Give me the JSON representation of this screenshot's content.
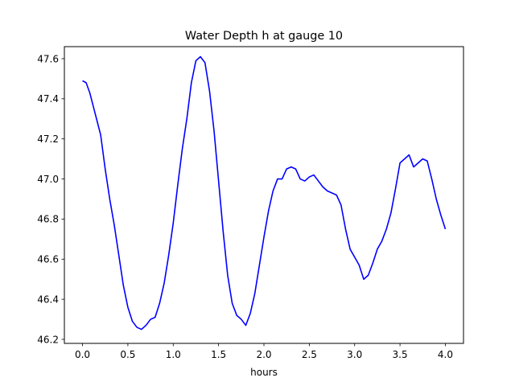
{
  "chart_data": {
    "type": "line",
    "title": "Water Depth h at gauge 10",
    "xlabel": "hours",
    "ylabel": "",
    "xlim": [
      -0.2,
      4.2
    ],
    "ylim": [
      46.18,
      47.66
    ],
    "xticks": [
      0.0,
      0.5,
      1.0,
      1.5,
      2.0,
      2.5,
      3.0,
      3.5,
      4.0
    ],
    "xtick_labels": [
      "0.0",
      "0.5",
      "1.0",
      "1.5",
      "2.0",
      "2.5",
      "3.0",
      "3.5",
      "4.0"
    ],
    "yticks": [
      46.2,
      46.4,
      46.6,
      46.8,
      47.0,
      47.2,
      47.4,
      47.6
    ],
    "ytick_labels": [
      "46.2",
      "46.4",
      "46.6",
      "46.8",
      "47.0",
      "47.2",
      "47.4",
      "47.6"
    ],
    "grid": false,
    "series": [
      {
        "color": "#0000ff",
        "x": [
          0.0,
          0.04,
          0.08,
          0.12,
          0.16,
          0.2,
          0.25,
          0.3,
          0.35,
          0.4,
          0.45,
          0.5,
          0.55,
          0.6,
          0.65,
          0.7,
          0.75,
          0.8,
          0.85,
          0.9,
          0.95,
          1.0,
          1.05,
          1.1,
          1.15,
          1.2,
          1.25,
          1.3,
          1.35,
          1.4,
          1.45,
          1.5,
          1.55,
          1.6,
          1.65,
          1.7,
          1.75,
          1.8,
          1.85,
          1.9,
          1.95,
          2.0,
          2.05,
          2.1,
          2.15,
          2.2,
          2.25,
          2.3,
          2.35,
          2.4,
          2.45,
          2.5,
          2.55,
          2.6,
          2.65,
          2.7,
          2.75,
          2.8,
          2.85,
          2.9,
          2.95,
          3.0,
          3.05,
          3.1,
          3.15,
          3.2,
          3.25,
          3.3,
          3.35,
          3.4,
          3.45,
          3.5,
          3.55,
          3.6,
          3.65,
          3.7,
          3.75,
          3.8,
          3.85,
          3.9,
          3.95,
          4.0
        ],
        "values": [
          47.49,
          47.48,
          47.43,
          47.36,
          47.29,
          47.22,
          47.05,
          46.9,
          46.77,
          46.62,
          46.47,
          46.36,
          46.29,
          46.26,
          46.25,
          46.27,
          46.3,
          46.31,
          46.38,
          46.48,
          46.62,
          46.78,
          46.97,
          47.15,
          47.3,
          47.48,
          47.59,
          47.61,
          47.58,
          47.44,
          47.24,
          46.99,
          46.74,
          46.52,
          46.38,
          46.32,
          46.3,
          46.27,
          46.33,
          46.43,
          46.57,
          46.71,
          46.84,
          46.94,
          47.0,
          47.0,
          47.05,
          47.06,
          47.05,
          47.0,
          46.99,
          47.01,
          47.02,
          46.99,
          46.96,
          46.94,
          46.93,
          46.92,
          46.87,
          46.75,
          46.65,
          46.61,
          46.57,
          46.5,
          46.52,
          46.58,
          46.65,
          46.69,
          46.75,
          46.83,
          46.95,
          47.08,
          47.1,
          47.12,
          47.06,
          47.08,
          47.1,
          47.09,
          47.0,
          46.9,
          46.82,
          46.75
        ]
      }
    ]
  }
}
